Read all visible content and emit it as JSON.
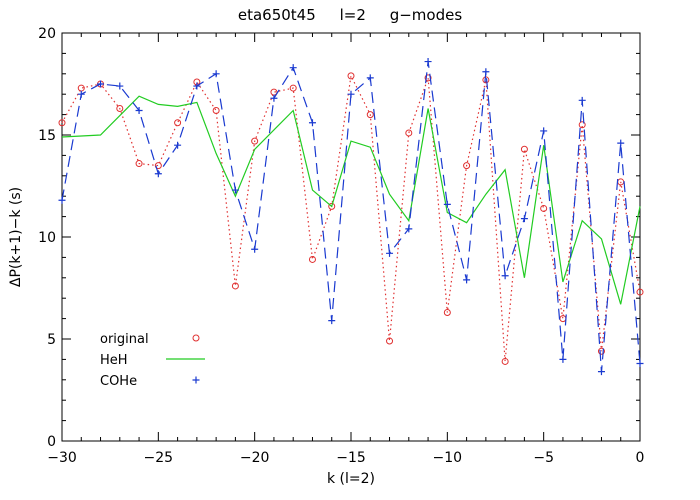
{
  "chart_data": {
    "type": "line",
    "title": "eta650t45     l=2     g−modes",
    "xlabel": "k (l=2)",
    "ylabel": "ΔP(k+1)−k (s)",
    "xlim": [
      -30,
      0
    ],
    "ylim": [
      0,
      20
    ],
    "xticks": [
      -30,
      -25,
      -20,
      -15,
      -10,
      -5,
      0
    ],
    "xtick_labels": [
      "−30",
      "−25",
      "−20",
      "−15",
      "−10",
      "−5",
      "0"
    ],
    "yticks": [
      0,
      5,
      10,
      15,
      20
    ],
    "ytick_labels": [
      "0",
      "5",
      "10",
      "15",
      "20"
    ],
    "grid": false,
    "legend_position": "bottom-left",
    "series": [
      {
        "name": "original",
        "color": "#e03030",
        "line": "dotted",
        "marker": "circle",
        "x": [
          -30,
          -29,
          -28,
          -27,
          -26,
          -25,
          -24,
          -23,
          -22,
          -21,
          -20,
          -19,
          -18,
          -17,
          -16,
          -15,
          -14,
          -13,
          -12,
          -11,
          -10,
          -9,
          -8,
          -7,
          -6,
          -5,
          -4,
          -3,
          -2,
          -1,
          0
        ],
        "y": [
          15.6,
          17.3,
          17.5,
          16.3,
          13.6,
          13.5,
          15.6,
          17.6,
          16.2,
          7.6,
          14.7,
          17.1,
          17.3,
          8.9,
          11.5,
          17.9,
          16.0,
          4.9,
          15.1,
          17.8,
          6.3,
          13.5,
          17.7,
          3.9,
          14.3,
          11.4,
          6.0,
          15.5,
          4.4,
          12.7,
          7.3
        ]
      },
      {
        "name": "HeH",
        "color": "#22cc22",
        "line": "solid",
        "marker": "none",
        "x": [
          -30,
          -28,
          -26,
          -25,
          -24,
          -23,
          -22,
          -21,
          -20,
          -18,
          -17,
          -16,
          -15,
          -14,
          -13,
          -12,
          -11,
          -10,
          -9,
          -8,
          -7,
          -6,
          -5,
          -4,
          -3,
          -2,
          -1,
          0
        ],
        "y": [
          14.9,
          15.0,
          16.9,
          16.5,
          16.4,
          16.6,
          14.1,
          12.0,
          14.3,
          16.2,
          12.3,
          11.5,
          14.7,
          14.4,
          12.1,
          10.8,
          16.3,
          11.2,
          10.7,
          12.1,
          13.3,
          8.0,
          14.5,
          7.8,
          10.8,
          9.9,
          6.7,
          11.5
        ]
      },
      {
        "name": "COHe",
        "color": "#1a3ad0",
        "line": "dashed",
        "marker": "plus",
        "x": [
          -30,
          -29,
          -28,
          -27,
          -26,
          -25,
          -24,
          -23,
          -22,
          -21,
          -20,
          -19,
          -18,
          -17,
          -16,
          -15,
          -14,
          -13,
          -12,
          -11,
          -10,
          -9,
          -8,
          -7,
          -6,
          -5,
          -4,
          -3,
          -2,
          -1,
          0
        ],
        "y": [
          11.8,
          17.0,
          17.5,
          17.4,
          16.2,
          13.1,
          14.5,
          17.4,
          18.0,
          12.3,
          9.4,
          16.8,
          18.3,
          15.6,
          5.9,
          17.0,
          17.8,
          9.2,
          10.4,
          18.6,
          11.6,
          7.9,
          18.1,
          8.1,
          10.9,
          15.2,
          4.0,
          16.7,
          3.4,
          14.6,
          3.8
        ]
      }
    ]
  }
}
